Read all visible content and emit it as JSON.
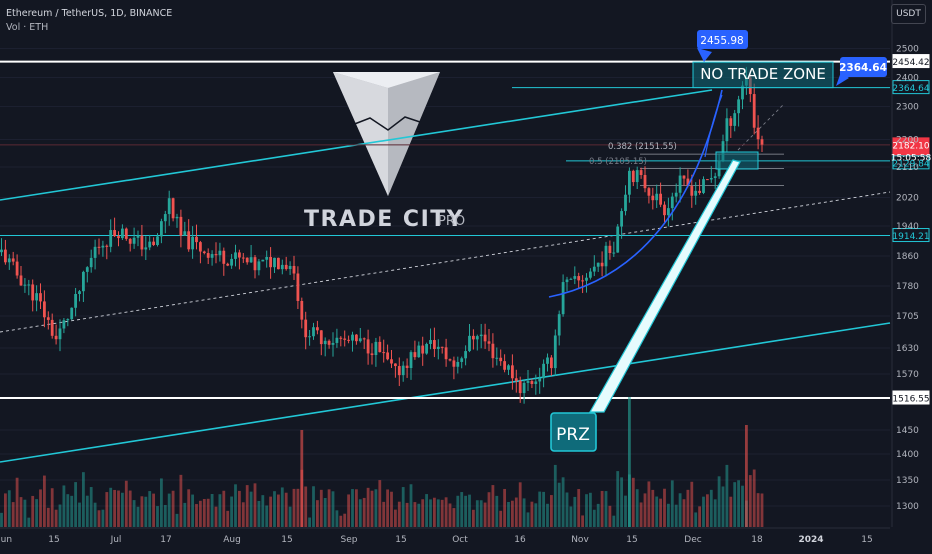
{
  "header": {
    "symbol_line": "Ethereum / TetherUS, 1D, BINANCE",
    "volume_line": "Vol · ETH",
    "currency_button": "USDT"
  },
  "watermark": {
    "brand": "TRADE CITY",
    "brand_suffix": "PRO"
  },
  "colors": {
    "background": "#131722",
    "up": "#26a69a",
    "down": "#ef5350",
    "level_white": "#ffffff",
    "level_cyan": "#22c7d6",
    "curve_blue": "#2962ff",
    "callout_blue": "#2962ff",
    "zone_fill": "#0f6b7a"
  },
  "chart_data": {
    "type": "candlestick",
    "symbol": "Ethereum / TetherUS",
    "timeframe": "1D",
    "exchange": "BINANCE",
    "y_axis": {
      "scale": "log",
      "range": [
        1270,
        2560
      ],
      "ticks": [
        2500,
        2400,
        2300,
        2200,
        2110,
        2020,
        1940,
        1860,
        1780,
        1705,
        1630,
        1570,
        1450,
        1400,
        1350,
        1300
      ]
    },
    "x_axis": {
      "ticks": [
        "Jun",
        "15",
        "Jul",
        "17",
        "Aug",
        "15",
        "Sep",
        "15",
        "Oct",
        "16",
        "Nov",
        "15",
        "Dec",
        "18",
        "2024",
        "15"
      ]
    },
    "price_labels": [
      {
        "value": "2454.42",
        "style": "white"
      },
      {
        "value": "2364.64",
        "style": "cyan"
      },
      {
        "value": "2182.10",
        "style": "red"
      },
      {
        "value": "15:05:58",
        "style": "red"
      },
      {
        "value": "2129.84",
        "style": "cyan"
      },
      {
        "value": "1914.21",
        "style": "cyan"
      },
      {
        "value": "1516.55",
        "style": "white"
      }
    ],
    "annotations": {
      "high_callout": "2455.98",
      "zone_callout": "2364.64",
      "no_trade_zone": "NO TRADE ZONE",
      "prz": "PRZ",
      "fib_382": "0.382 (2151.55)",
      "fib_5": "0.5 (2105.15)"
    },
    "key_levels": {
      "resistance_high": 2454.42,
      "no_trade_zone_low": 2364.64,
      "current_price": 2182.1,
      "prz_low": 2129.84,
      "support_mid": 1914.21,
      "support_low": 1516.55,
      "fib_382": 2151.55,
      "fib_5": 2105.15
    },
    "price_path": [
      [
        "Jun 1",
        1870
      ],
      [
        "Jun 5",
        1810
      ],
      [
        "Jun 10",
        1750
      ],
      [
        "Jun 15",
        1650
      ],
      [
        "Jun 20",
        1740
      ],
      [
        "Jun 25",
        1880
      ],
      [
        "Jul 1",
        1930
      ],
      [
        "Jul 5",
        1900
      ],
      [
        "Jul 10",
        1880
      ],
      [
        "Jul 14",
        2010
      ],
      [
        "Jul 17",
        1910
      ],
      [
        "Jul 22",
        1880
      ],
      [
        "Jul 27",
        1860
      ],
      [
        "Aug 1",
        1850
      ],
      [
        "Aug 5",
        1830
      ],
      [
        "Aug 10",
        1850
      ],
      [
        "Aug 15",
        1830
      ],
      [
        "Aug 17",
        1680
      ],
      [
        "Aug 20",
        1660
      ],
      [
        "Aug 25",
        1650
      ],
      [
        "Sep 1",
        1640
      ],
      [
        "Sep 5",
        1630
      ],
      [
        "Sep 10",
        1570
      ],
      [
        "Sep 15",
        1620
      ],
      [
        "Sep 20",
        1640
      ],
      [
        "Sep 25",
        1590
      ],
      [
        "Oct 1",
        1670
      ],
      [
        "Oct 5",
        1620
      ],
      [
        "Oct 10",
        1570
      ],
      [
        "Oct 12",
        1540
      ],
      [
        "Oct 16",
        1560
      ],
      [
        "Oct 20",
        1600
      ],
      [
        "Oct 23",
        1780
      ],
      [
        "Oct 27",
        1790
      ],
      [
        "Nov 1",
        1840
      ],
      [
        "Nov 5",
        1890
      ],
      [
        "Nov 9",
        2100
      ],
      [
        "Nov 12",
        2070
      ],
      [
        "Nov 15",
        2030
      ],
      [
        "Nov 18",
        1990
      ],
      [
        "Nov 22",
        2060
      ],
      [
        "Nov 27",
        2040
      ],
      [
        "Dec 1",
        2090
      ],
      [
        "Dec 4",
        2240
      ],
      [
        "Dec 6",
        2290
      ],
      [
        "Dec 9",
        2410
      ],
      [
        "Dec 10",
        2350
      ],
      [
        "Dec 11",
        2240
      ],
      [
        "Dec 13",
        2182
      ]
    ],
    "volume": {
      "unit": "ETH",
      "peaks": [
        "Aug 17",
        "Nov 9",
        "Dec 9"
      ]
    }
  }
}
